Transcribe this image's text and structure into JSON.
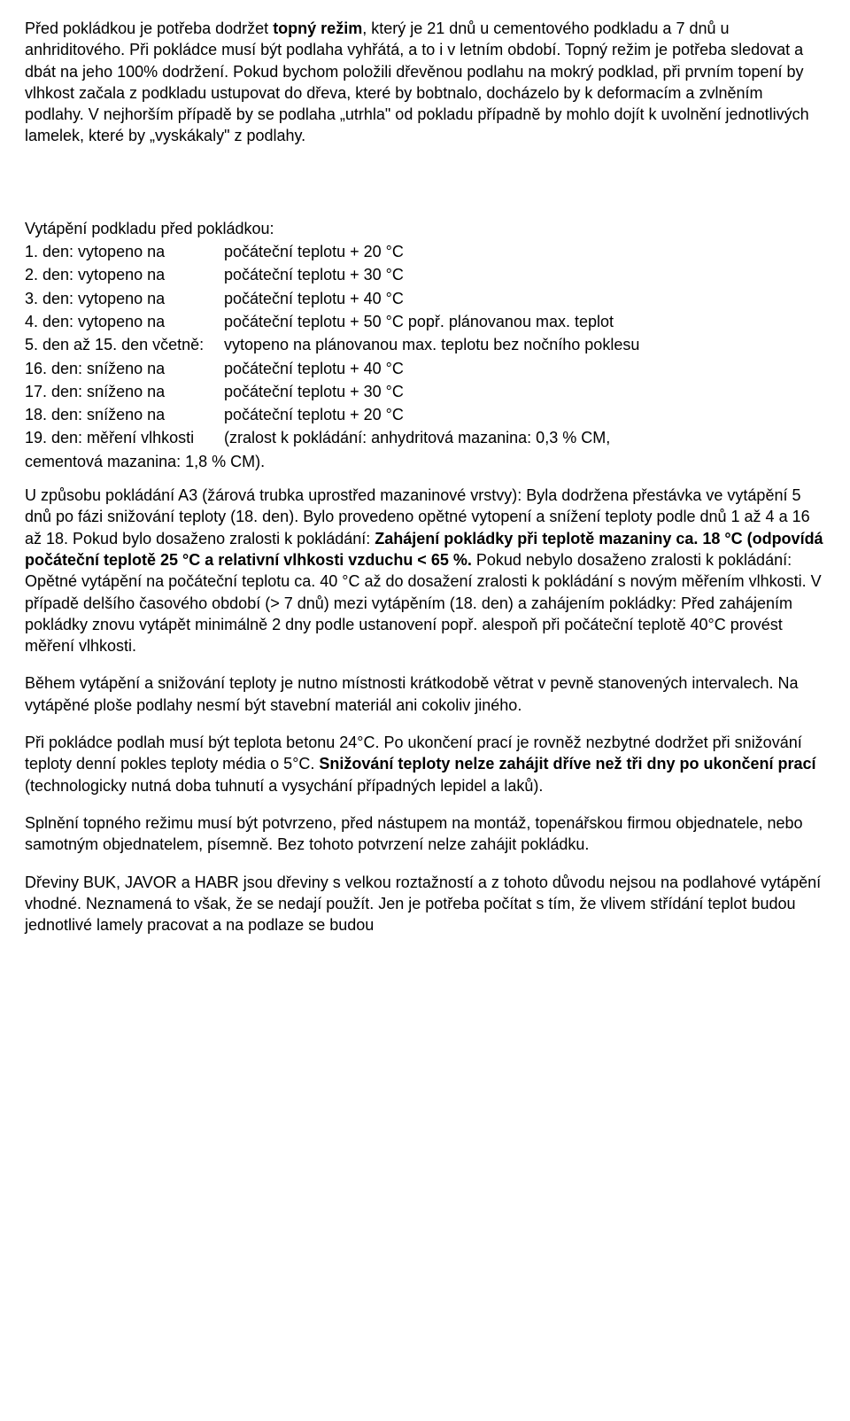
{
  "intro": {
    "p1_pre": "Před pokládkou je potřeba dodržet ",
    "p1_bold1": "topný režim",
    "p1_post": ", který je 21 dnů u cementového podkladu a 7 dnů u anhriditového. Při pokládce musí být podlaha vyhřátá, a to i v letním období. Topný režim je potřeba sledovat a dbát na jeho 100% dodržení. Pokud bychom položili dřevěnou podlahu na mokrý podklad, při prvním topení by vlhkost začala z podkladu ustupovat do dřeva, které by bobtnalo, docházelo by k deformacím a zvlněním podlahy. V nejhorším případě by se podlaha „utrhla\" od pokladu případně by mohlo dojít k uvolnění jednotlivých lamelek, které by „vyskákaly\" z podlahy."
  },
  "schedule": {
    "title": "Vytápění podkladu před pokládkou:",
    "rows": [
      {
        "label": "1. den:  vytopeno na",
        "value": "počáteční teplotu + 20 °C"
      },
      {
        "label": "2. den:  vytopeno na",
        "value": "počáteční teplotu + 30 °C"
      },
      {
        "label": "3. den:  vytopeno na",
        "value": "počáteční teplotu + 40 °C"
      },
      {
        "label": "4. den:  vytopeno na",
        "value": "počáteční teplotu + 50 °C popř. plánovanou max. teplot"
      },
      {
        "label": "5. den až 15. den včetně:",
        "value": "vytopeno na plánovanou max. teplotu bez nočního poklesu"
      },
      {
        "label": "16. den:  sníženo na",
        "value": "počáteční teplotu + 40 °C"
      },
      {
        "label": "17. den:  sníženo  na",
        "value": "počáteční teplotu + 30 °C"
      },
      {
        "label": "18. den:  sníženo na",
        "value": "počáteční teplotu + 20 °C"
      },
      {
        "label": "19. den:  měření vlhkosti",
        "value": "(zralost k pokládání: anhydritová mazanina: 0,3 % CM,"
      }
    ],
    "tail": "cementová mazanina: 1,8 % CM)."
  },
  "p2": {
    "pre": "U způsobu pokládání A3 (žárová trubka uprostřed mazaninové vrstvy): Byla dodržena přestávka ve vytápění 5 dnů po fázi snižování teploty (18. den). Bylo provedeno opětné vytopení a snížení teploty podle dnů 1 až  4 a 16 až 18. Pokud bylo dosaženo zralosti k pokládání: ",
    "bold": "Zahájení pokládky při teplotě mazaniny ca. 18 °C (odpovídá počáteční teplotě 25 °C a relativní vlhkosti vzduchu < 65 %.",
    "post": " Pokud nebylo dosaženo zralosti k pokládání: Opětné vytápění na počáteční teplotu ca. 40 °C až do dosažení zralosti k pokládání s novým měřením vlhkosti. V případě delšího časového období (> 7 dnů) mezi vytápěním  (18. den) a zahájením pokládky: Před zahájením pokládky znovu vytápět minimálně 2 dny podle ustanovení popř. alespoň při počáteční teplotě 40°C provést měření vlhkosti."
  },
  "p3": "Během vytápění a snižování teploty je nutno místnosti krátkodobě větrat v pevně stanovených intervalech. Na vytápěné ploše podlahy nesmí být stavební materiál ani cokoliv jiného.",
  "p4": {
    "pre": "Při pokládce podlah musí být teplota betonu 24°C. Po ukončení prací je rovněž nezbytné dodržet při snižování teploty denní pokles teploty média o 5°C. ",
    "bold": "Snižování teploty nelze zahájit dříve než tři dny po ukončení prací",
    "post": " (technologicky nutná doba tuhnutí a vysychání případných lepidel a laků)."
  },
  "p5": "Splnění topného režimu musí být potvrzeno, před nástupem na montáž, topenářskou firmou objednatele, nebo samotným objednatelem, písemně. Bez tohoto potvrzení nelze zahájit pokládku.",
  "p6": "Dřeviny BUK, JAVOR a HABR jsou dřeviny s velkou roztažností a z tohoto důvodu nejsou na podlahové vytápění vhodné. Neznamená to však, že se nedají použít.  Jen je potřeba počítat s tím, že vlivem střídání teplot budou jednotlivé lamely pracovat a na podlaze se budou"
}
